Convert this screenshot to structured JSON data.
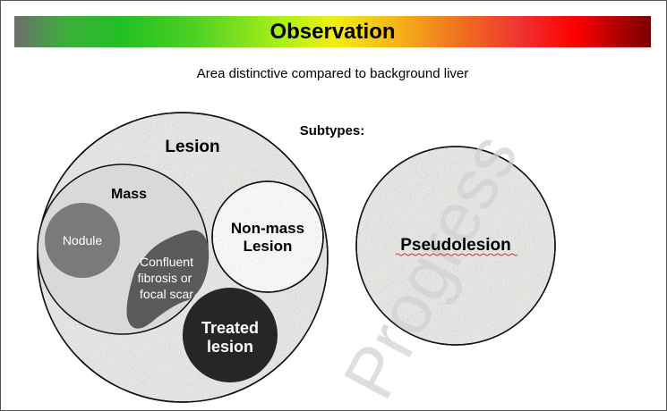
{
  "header": {
    "title": "Observation"
  },
  "description": "Area distinctive compared to background liver",
  "diagram": {
    "subtypes_label": "Subtypes:",
    "lesion_label": "Lesion",
    "mass_label": "Mass",
    "nodule_label": "Nodule",
    "confluent_label_lines": [
      "Confluent",
      "fibrosis or",
      "focal scar"
    ],
    "nonmass_label_lines": [
      "Non-mass",
      "Lesion"
    ],
    "treated_label_lines": [
      "Treated",
      "lesion"
    ],
    "pseudolesion_label": "Pseudolesion"
  },
  "watermark": {
    "text": "Progress"
  },
  "colors": {
    "speckle_base": "#ececea",
    "mass_fill": "#d9d9d9",
    "nodule_fill": "#7a7a7a",
    "confluent_fill": "#5a5a5a",
    "treated_fill": "#262626",
    "watermark_color": "#d0d0d0"
  }
}
